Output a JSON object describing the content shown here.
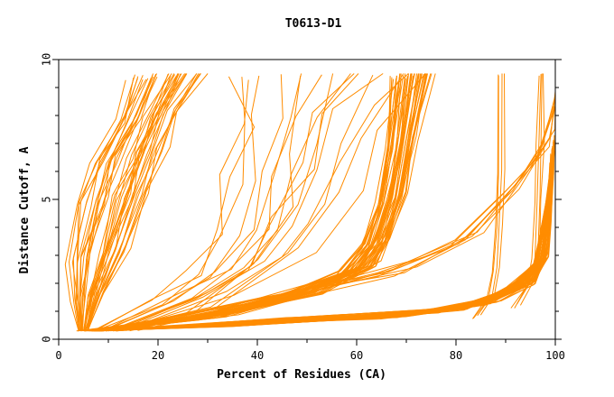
{
  "chart_data": {
    "type": "line",
    "title": "T0613-D1",
    "xlabel": "Percent of Residues (CA)",
    "ylabel": "Distance Cutoff, A",
    "xlim": [
      0,
      100
    ],
    "ylim": [
      0,
      10
    ],
    "x_ticks": [
      "0",
      "20",
      "40",
      "60",
      "80",
      "100"
    ],
    "y_ticks": [
      "0",
      "5",
      "10"
    ],
    "line_color": "#ff8c00",
    "groups": [
      {
        "count": 40,
        "points": [
          [
            5,
            0.3
          ],
          [
            6,
            1.5
          ],
          [
            8,
            3
          ],
          [
            11,
            5
          ],
          [
            14,
            6.5
          ],
          [
            18,
            8
          ],
          [
            22,
            9.5
          ]
        ],
        "spread": [
          [
            1,
            0.2
          ],
          [
            3,
            0.3
          ],
          [
            6,
            0.4
          ],
          [
            7,
            0.4
          ],
          [
            7,
            0.4
          ],
          [
            6,
            0.3
          ],
          [
            7,
            0.3
          ]
        ]
      },
      {
        "count": 45,
        "points": [
          [
            8,
            0.3
          ],
          [
            30,
            0.8
          ],
          [
            48,
            1.6
          ],
          [
            60,
            2.5
          ],
          [
            64,
            3.5
          ],
          [
            67,
            5
          ],
          [
            69,
            7
          ],
          [
            71,
            9.5
          ]
        ],
        "spread": [
          [
            4,
            0.1
          ],
          [
            6,
            0.2
          ],
          [
            6,
            0.3
          ],
          [
            4,
            0.3
          ],
          [
            3,
            0.3
          ],
          [
            3,
            0.3
          ],
          [
            3,
            0.3
          ],
          [
            4,
            0.3
          ]
        ]
      },
      {
        "count": 55,
        "points": [
          [
            10,
            0.3
          ],
          [
            40,
            0.6
          ],
          [
            70,
            0.9
          ],
          [
            85,
            1.3
          ],
          [
            93,
            1.9
          ],
          [
            97,
            2.8
          ],
          [
            98,
            4
          ],
          [
            99,
            5.5
          ],
          [
            99.3,
            6.5
          ]
        ],
        "spread": [
          [
            4,
            0.1
          ],
          [
            8,
            0.2
          ],
          [
            7,
            0.2
          ],
          [
            4,
            0.3
          ],
          [
            3,
            0.3
          ],
          [
            1.5,
            0.3
          ],
          [
            1,
            0.4
          ],
          [
            0.6,
            0.6
          ],
          [
            0.5,
            0.8
          ]
        ]
      },
      {
        "count": 12,
        "points": [
          [
            10,
            0.3
          ],
          [
            25,
            1.5
          ],
          [
            35,
            2.5
          ],
          [
            40,
            4
          ],
          [
            44,
            6
          ],
          [
            48,
            8
          ],
          [
            52,
            9.5
          ]
        ],
        "spread": [
          [
            4,
            0.1
          ],
          [
            8,
            0.5
          ],
          [
            10,
            0.6
          ],
          [
            10,
            0.6
          ],
          [
            12,
            0.6
          ],
          [
            15,
            0.5
          ],
          [
            20,
            0.3
          ]
        ]
      },
      {
        "count": 8,
        "points": [
          [
            12,
            0.3
          ],
          [
            45,
            1.5
          ],
          [
            68,
            2.5
          ],
          [
            82,
            3.6
          ],
          [
            92,
            5.5
          ],
          [
            98,
            7
          ],
          [
            100,
            8.5
          ]
        ],
        "spread": [
          [
            4,
            0.1
          ],
          [
            6,
            0.4
          ],
          [
            5,
            0.5
          ],
          [
            4,
            0.5
          ],
          [
            3,
            0.6
          ],
          [
            2,
            0.6
          ],
          [
            0.5,
            0.6
          ]
        ]
      },
      {
        "count": 4,
        "points": [
          [
            84,
            0.8
          ],
          [
            87,
            1.5
          ],
          [
            88,
            2.5
          ],
          [
            88.5,
            4
          ],
          [
            89,
            6
          ],
          [
            89,
            9.5
          ]
        ],
        "spread": [
          [
            1,
            0.1
          ],
          [
            1,
            0.2
          ],
          [
            1,
            0.2
          ],
          [
            1,
            0.2
          ],
          [
            1,
            0.2
          ],
          [
            1,
            0.2
          ]
        ]
      },
      {
        "count": 4,
        "points": [
          [
            92,
            1.2
          ],
          [
            95,
            2
          ],
          [
            96,
            3
          ],
          [
            96.5,
            5
          ],
          [
            97,
            7
          ],
          [
            97.2,
            9.5
          ]
        ],
        "spread": [
          [
            1.5,
            0.2
          ],
          [
            1,
            0.2
          ],
          [
            1,
            0.2
          ],
          [
            1,
            0.2
          ],
          [
            1,
            0.2
          ],
          [
            0.6,
            0.1
          ]
        ]
      },
      {
        "count": 5,
        "points": [
          [
            10,
            0.3
          ],
          [
            30,
            1.2
          ],
          [
            45,
            3
          ],
          [
            53,
            5
          ],
          [
            56,
            7
          ],
          [
            62,
            9.5
          ]
        ],
        "spread": [
          [
            4,
            0.1
          ],
          [
            6,
            0.4
          ],
          [
            8,
            0.5
          ],
          [
            8,
            0.5
          ],
          [
            10,
            0.5
          ],
          [
            14,
            0.3
          ]
        ]
      }
    ]
  }
}
